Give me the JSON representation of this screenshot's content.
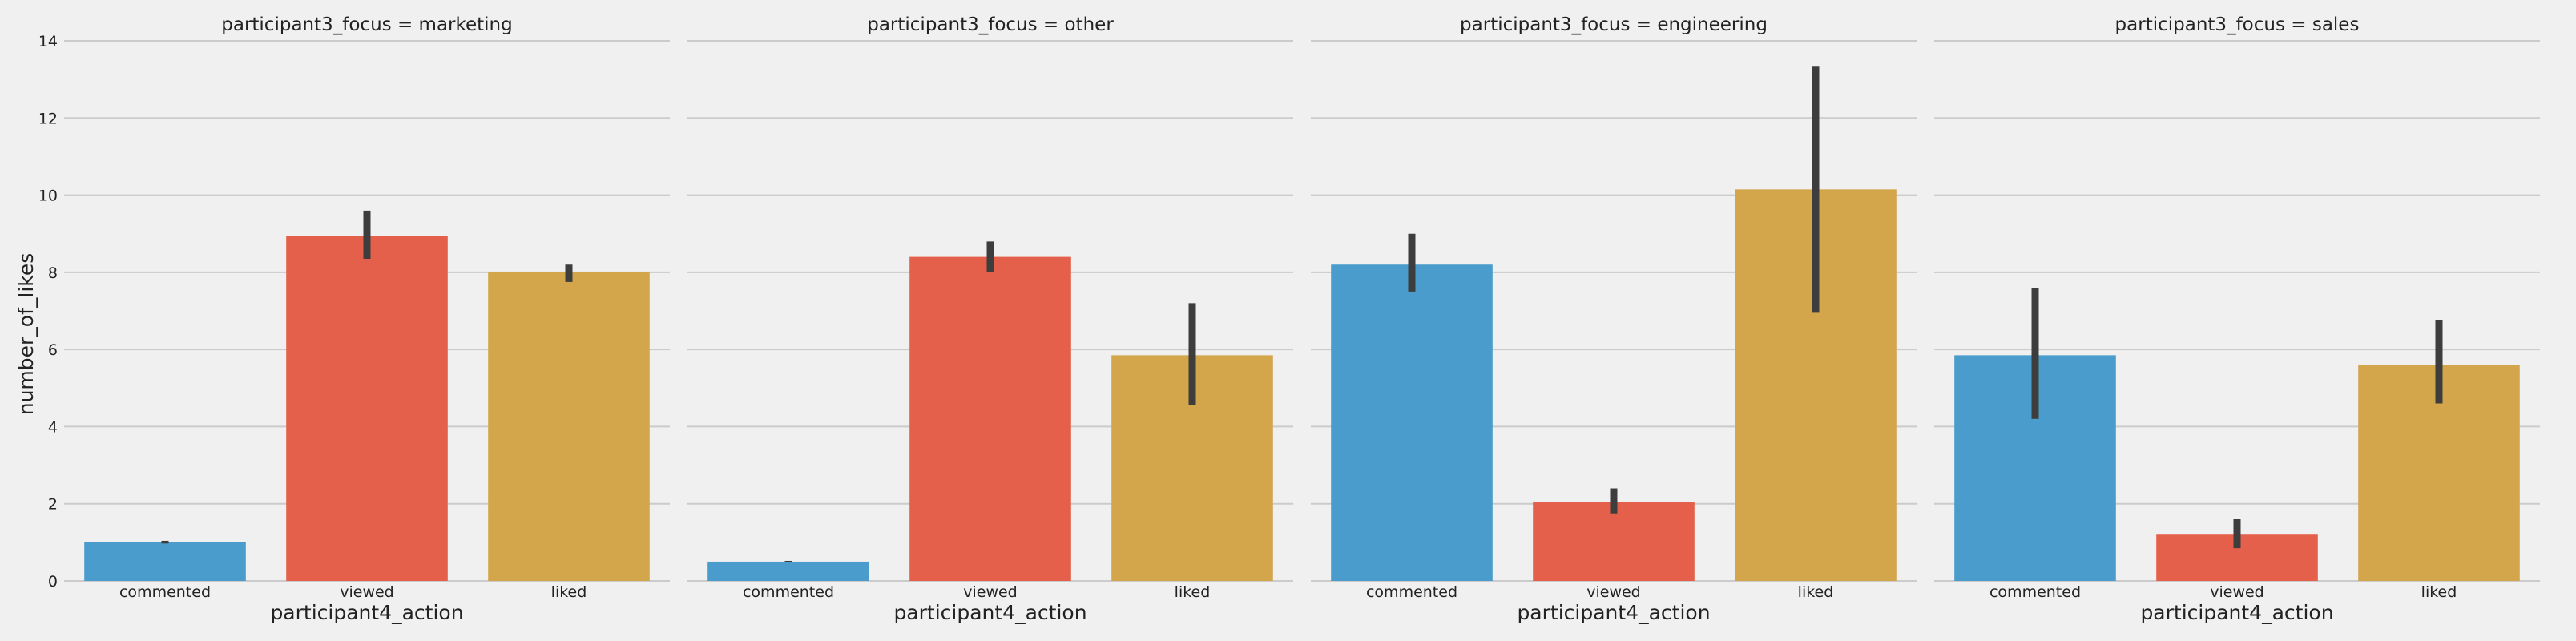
{
  "chart_data": {
    "type": "bar",
    "ylabel": "number_of_likes",
    "xlabel": "participant4_action",
    "ylim": [
      0,
      14
    ],
    "yticks": [
      "0",
      "2",
      "4",
      "6",
      "8",
      "10",
      "12",
      "14"
    ],
    "grid": true,
    "categories": [
      "commented",
      "viewed",
      "liked"
    ],
    "colors": [
      "#4a9ccc",
      "#e5604a",
      "#d4a64c"
    ],
    "error_bar_color": "#3d3d3d",
    "panels": [
      {
        "title": "participant3_focus = marketing",
        "values": [
          1.0,
          8.95,
          8.0
        ],
        "err_low": [
          0.97,
          8.35,
          7.75
        ],
        "err_high": [
          1.04,
          9.6,
          8.2
        ]
      },
      {
        "title": "participant3_focus = other",
        "values": [
          0.5,
          8.4,
          5.85
        ],
        "err_low": [
          0.48,
          8.0,
          4.55
        ],
        "err_high": [
          0.52,
          8.8,
          7.2
        ]
      },
      {
        "title": "participant3_focus = engineering",
        "values": [
          8.2,
          2.05,
          10.15
        ],
        "err_low": [
          7.5,
          1.75,
          6.95
        ],
        "err_high": [
          9.0,
          2.4,
          13.35
        ]
      },
      {
        "title": "participant3_focus = sales",
        "values": [
          5.85,
          1.2,
          5.6
        ],
        "err_low": [
          4.2,
          0.85,
          4.6
        ],
        "err_high": [
          7.6,
          1.6,
          6.75
        ]
      }
    ]
  }
}
